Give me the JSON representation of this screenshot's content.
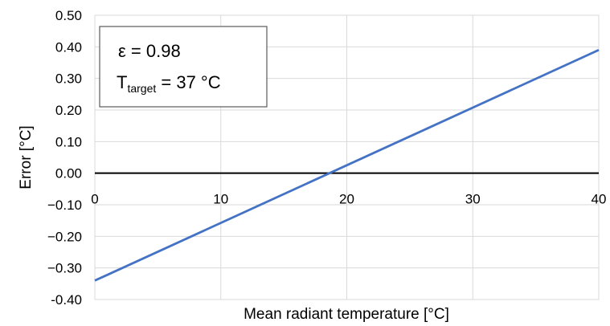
{
  "chart_data": {
    "type": "line",
    "xlabel": "Mean radiant temperature [°C]",
    "ylabel": "Error [°C]",
    "xlim": [
      0,
      40
    ],
    "ylim": [
      -0.4,
      0.5
    ],
    "x_ticks": [
      "0",
      "10",
      "20",
      "30",
      "40"
    ],
    "y_ticks": [
      "0.50",
      "0.40",
      "0.30",
      "0.20",
      "0.10",
      "0.00",
      "−0.10",
      "−0.20",
      "−0.30",
      "-0.40"
    ],
    "grid": true,
    "series": [
      {
        "x": [
          0,
          40
        ],
        "y": [
          -0.34,
          0.39
        ],
        "color": "#4472C4"
      }
    ],
    "annotation": {
      "epsilon_line": "ε = 0.98",
      "t_symbol": "T",
      "t_subscript": "target",
      "t_value": " = 37 °C"
    }
  }
}
